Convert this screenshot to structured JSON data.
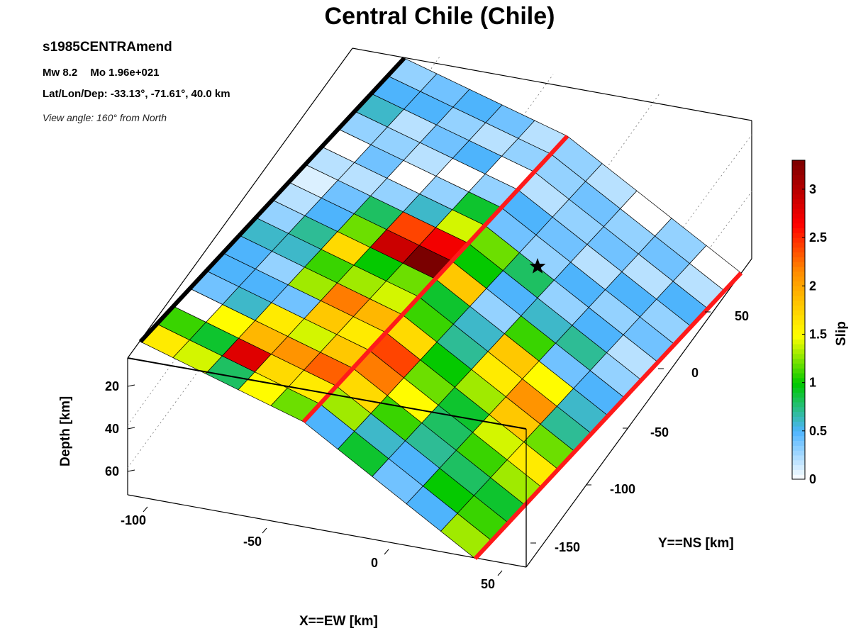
{
  "title": "Central Chile (Chile)",
  "event": {
    "name": "s1985CENTRAmend",
    "magnitude": "Mw 8.2",
    "moment": "Mo 1.96e+021",
    "location": "Lat/Lon/Dep: -33.13°, -71.61°, 40.0 km",
    "view": "View angle: 160° from North"
  },
  "chart_data": {
    "type": "heatmap",
    "title": "Central Chile (Chile)",
    "xlabel": "X==EW [km]",
    "ylabel": "Y==NS [km]",
    "zlabel": "Depth [km]",
    "colorbar_label": "Slip [m]",
    "x_ticks": [
      "-100",
      "-50",
      "0",
      "50"
    ],
    "y_ticks": [
      "-150",
      "-100",
      "-50",
      "0",
      "50"
    ],
    "z_ticks": [
      "20",
      "40",
      "60"
    ],
    "colorbar_ticks": [
      "0",
      "0.5",
      "1",
      "1.5",
      "2",
      "2.5",
      "3"
    ],
    "colorbar_range": [
      0,
      3.3
    ],
    "grid": true,
    "hypocenter_marker": "star",
    "slip_along_strike_rows": [
      [
        1.6,
        1.1,
        0.0,
        0.4,
        0.5,
        0.5,
        0.6,
        0.3,
        0.2,
        0.1,
        0.2,
        0.0,
        0.3,
        0.6,
        0.5,
        0.3
      ],
      [
        1.4,
        0.9,
        1.5,
        0.6,
        0.5,
        0.3,
        0.6,
        0.7,
        0.5,
        0.4,
        0.2,
        0.4,
        0.3,
        0.2,
        0.5,
        0.4
      ],
      [
        0.8,
        2.8,
        1.9,
        1.6,
        0.4,
        1.3,
        1.1,
        1.7,
        1.2,
        0.8,
        0.3,
        0.0,
        0.2,
        0.4,
        0.3,
        0.5
      ],
      [
        1.5,
        1.7,
        2.1,
        1.4,
        1.8,
        2.2,
        1.3,
        1.0,
        2.9,
        2.4,
        0.6,
        0.3,
        0.0,
        0.5,
        0.2,
        0.4
      ],
      [
        1.2,
        1.6,
        2.3,
        1.8,
        1.6,
        1.9,
        1.4,
        1.2,
        3.3,
        2.7,
        1.4,
        0.9,
        0.3,
        0.0,
        0.3,
        0.2
      ],
      [
        0.5,
        1.3,
        1.7,
        2.2,
        2.4,
        1.7,
        1.1,
        0.9,
        1.8,
        1.0,
        1.2,
        0.4,
        0.5,
        0.2,
        0.3,
        0.3
      ],
      [
        0.9,
        0.6,
        1.1,
        1.5,
        1.2,
        1.0,
        0.7,
        0.6,
        0.3,
        0.5,
        0.8,
        0.3,
        0.4,
        0.3,
        0.4,
        0.2
      ],
      [
        0.4,
        0.5,
        0.7,
        0.8,
        0.9,
        1.3,
        1.6,
        1.8,
        1.1,
        0.6,
        0.3,
        0.5,
        0.2,
        0.4,
        0.3,
        0.0
      ],
      [
        0.5,
        1.0,
        0.8,
        1.1,
        1.4,
        1.8,
        2.1,
        1.5,
        0.4,
        0.7,
        0.5,
        0.3,
        0.5,
        0.2,
        0.4,
        0.3
      ],
      [
        1.3,
        1.1,
        0.9,
        1.3,
        1.6,
        1.2,
        0.7,
        0.6,
        0.5,
        0.3,
        0.2,
        0.4,
        0.3,
        0.5,
        0.2,
        0.0
      ]
    ]
  },
  "colors": {
    "outline": "#000000",
    "trench_line": "#ff1a1a",
    "top_edge": "#000000",
    "colormap": [
      "#ffffff",
      "#4fb4ff",
      "#00c800",
      "#ffff00",
      "#ff8c00",
      "#ff0000",
      "#7a0000"
    ]
  }
}
